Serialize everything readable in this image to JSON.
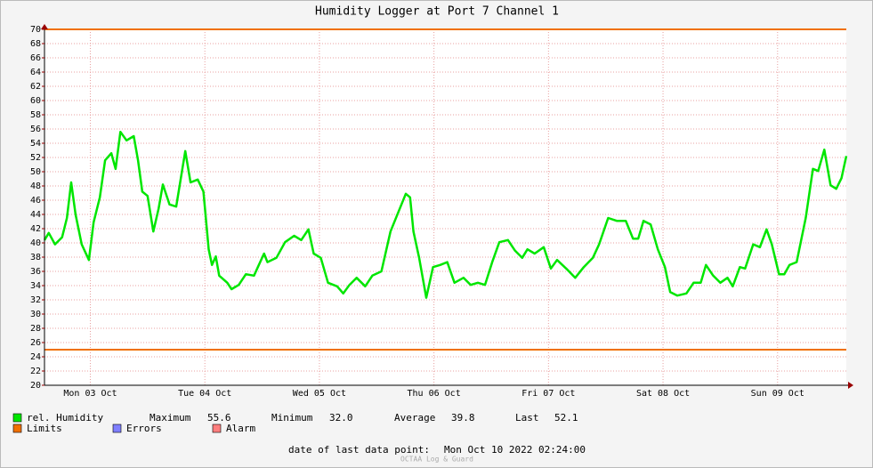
{
  "chart_data": {
    "type": "line",
    "title": "Humidity Logger at Port 7 Channel 1",
    "x": [
      2.4,
      3.3,
      4.6,
      6.1,
      7.1,
      8.0,
      8.9,
      10.2,
      11.7,
      12.7,
      14.0,
      15.1,
      16.4,
      17.3,
      18.3,
      19.6,
      21.1,
      22.0,
      22.9,
      24.0,
      25.2,
      26.3,
      27.2,
      28.6,
      30.0,
      31.9,
      33.0,
      34.5,
      35.7,
      36.8,
      37.5,
      38.3,
      39.0,
      40.7,
      41.6,
      43.1,
      44.6,
      46.3,
      48.4,
      49.1,
      51.0,
      52.8,
      54.7,
      56.2,
      57.7,
      58.8,
      60.3,
      61.8,
      63.7,
      65.0,
      66.3,
      67.8,
      69.6,
      71.1,
      73.0,
      74.9,
      76.4,
      78.1,
      79.0,
      79.7,
      80.9,
      82.4,
      83.8,
      85.3,
      86.8,
      88.3,
      90.2,
      91.7,
      93.2,
      94.7,
      96.2,
      97.7,
      99.5,
      101.0,
      102.5,
      103.6,
      105.1,
      107.0,
      108.5,
      109.8,
      111.7,
      113.6,
      115.4,
      117.3,
      118.6,
      120.5,
      122.3,
      124.2,
      125.7,
      126.8,
      127.9,
      129.4,
      130.9,
      132.4,
      133.5,
      135.0,
      136.9,
      138.4,
      139.9,
      141.0,
      142.5,
      144.0,
      145.5,
      146.6,
      148.1,
      149.2,
      150.9,
      152.3,
      153.7,
      154.8,
      156.3,
      157.4,
      158.5,
      160.0,
      161.9,
      163.4,
      164.5,
      165.8,
      167.1,
      168.3,
      169.4,
      170.4
    ],
    "series": [
      {
        "name": "rel. Humidity",
        "color": "#00e600",
        "values": [
          40.4,
          41.4,
          39.8,
          40.8,
          43.5,
          48.5,
          44,
          39.8,
          37.6,
          42.9,
          46.4,
          51.6,
          52.6,
          50.4,
          55.6,
          54.4,
          55,
          51.6,
          47.2,
          46.6,
          41.6,
          44.8,
          48.2,
          45.4,
          45.1,
          52.9,
          48.5,
          48.9,
          47.2,
          39.1,
          36.9,
          38.1,
          35.4,
          34.4,
          33.5,
          34.1,
          35.6,
          35.4,
          38.5,
          37.3,
          37.9,
          40.1,
          41,
          40.4,
          41.9,
          38.5,
          37.9,
          34.4,
          33.9,
          32.9,
          34.1,
          35.1,
          33.9,
          35.4,
          36,
          41.6,
          44.1,
          46.9,
          46.4,
          41.6,
          37.9,
          32.3,
          36.6,
          36.9,
          37.3,
          34.4,
          35.1,
          34.1,
          34.4,
          34.1,
          37.3,
          40.1,
          40.4,
          38.9,
          37.9,
          39.1,
          38.5,
          39.4,
          36.4,
          37.6,
          36.4,
          35.1,
          36.6,
          37.9,
          39.8,
          43.5,
          43.1,
          43.1,
          40.6,
          40.6,
          43.1,
          42.6,
          39.1,
          36.6,
          33.1,
          32.6,
          32.9,
          34.4,
          34.4,
          36.9,
          35.4,
          34.4,
          35.1,
          33.9,
          36.6,
          36.4,
          39.8,
          39.4,
          41.9,
          39.8,
          35.6,
          35.6,
          36.9,
          37.3,
          43.5,
          50.4,
          50.1,
          53.1,
          48.1,
          47.6,
          49.1,
          52.2
        ]
      }
    ],
    "limits": {
      "name": "Limits",
      "color": "#f07000",
      "values": [
        70,
        25
      ]
    },
    "legend_extra": [
      {
        "name": "Errors",
        "color": "#7f7fff"
      },
      {
        "name": "Alarm",
        "color": "#ff7f7f"
      }
    ],
    "stats": [
      {
        "label": "Maximum",
        "value": "55.6"
      },
      {
        "label": "Minimum",
        "value": "32.0"
      },
      {
        "label": "Average",
        "value": "39.8"
      },
      {
        "label": "Last",
        "value": "52.1"
      }
    ],
    "footer": {
      "label": "date of last data point:",
      "value": "Mon Oct 10 2022 02:24:00"
    },
    "watermark": "OCTAA Log & Guard",
    "xlim": [
      2.4,
      170.4
    ],
    "xticks": [
      {
        "value": 12,
        "label": "Mon 03 Oct"
      },
      {
        "value": 36,
        "label": "Tue 04 Oct"
      },
      {
        "value": 60,
        "label": "Wed 05 Oct"
      },
      {
        "value": 84,
        "label": "Thu 06 Oct"
      },
      {
        "value": 108,
        "label": "Fri 07 Oct"
      },
      {
        "value": 132,
        "label": "Sat 08 Oct"
      },
      {
        "value": 156,
        "label": "Sun 09 Oct"
      }
    ],
    "ylim": [
      20,
      70
    ],
    "yticks": [
      20,
      22,
      24,
      26,
      28,
      30,
      32,
      34,
      36,
      38,
      40,
      42,
      44,
      46,
      48,
      50,
      52,
      54,
      56,
      58,
      60,
      62,
      64,
      66,
      68,
      70
    ],
    "grid": true
  }
}
